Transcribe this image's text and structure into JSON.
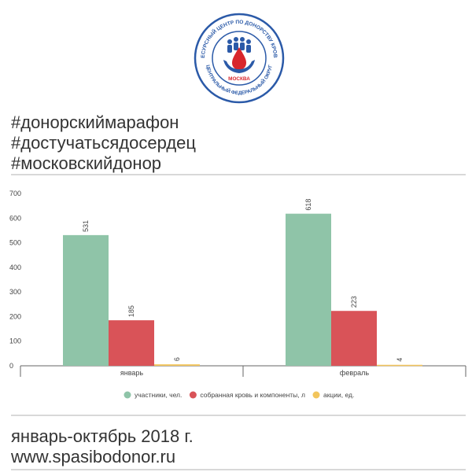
{
  "logo": {
    "ring_text_top": "РЕСУРСНЫЙ ЦЕНТР ПО ДОНОРСТВУ КРОВИ",
    "ring_text_bottom": "ЦЕНТРАЛЬНЫЙ ФЕДЕРАЛЬНЫЙ ОКРУГ",
    "city": "МОСКВА"
  },
  "hashtags": [
    "#донорскиймарафон",
    "#достучатьсядосердец",
    "#московскийдонор"
  ],
  "footer": {
    "period": "январь-октябрь 2018 г.",
    "url": "www.spasibodonor.ru"
  },
  "colors": {
    "participants": "#8fc4a8",
    "blood": "#d95358",
    "actions": "#f2c55c",
    "logo_blue": "#2b5aa8",
    "logo_red": "#d8262c"
  },
  "chart_data": {
    "type": "bar",
    "categories": [
      "январь",
      "февраль"
    ],
    "series": [
      {
        "name": "участники, чел.",
        "values": [
          531,
          618
        ],
        "color": "#8fc4a8"
      },
      {
        "name": "собранная кровь и компоненты, л",
        "values": [
          185,
          223
        ],
        "color": "#d95358"
      },
      {
        "name": "акции, ед.",
        "values": [
          6,
          4
        ],
        "color": "#f2c55c"
      }
    ],
    "yticks": [
      0,
      100,
      200,
      300,
      400,
      500,
      600,
      700
    ],
    "ylim": [
      0,
      700
    ],
    "grid": false,
    "legend_position": "bottom-center"
  }
}
